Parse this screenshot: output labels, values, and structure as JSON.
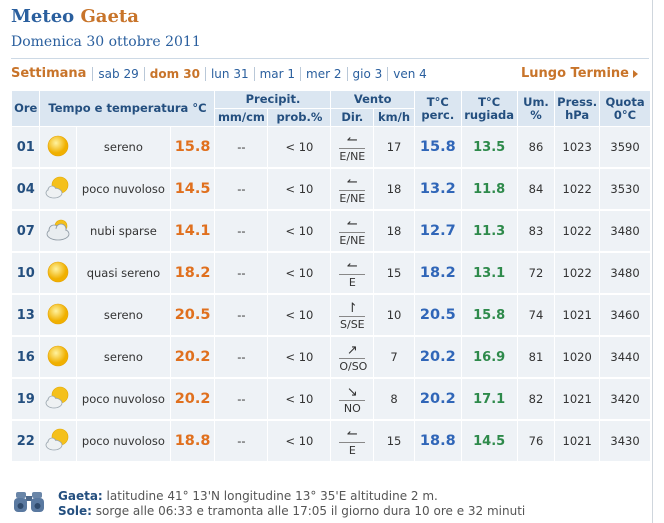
{
  "header": {
    "title_prefix": "Meteo",
    "city": "Gaeta",
    "date": "Domenica 30 ottobre 2011"
  },
  "week": {
    "label": "Settimana",
    "days": [
      {
        "label": "sab 29",
        "active": false
      },
      {
        "label": "dom 30",
        "active": true
      },
      {
        "label": "lun 31",
        "active": false
      },
      {
        "label": "mar 1",
        "active": false
      },
      {
        "label": "mer 2",
        "active": false
      },
      {
        "label": "gio 3",
        "active": false
      },
      {
        "label": "ven 4",
        "active": false
      }
    ],
    "long_term": "Lungo Termine"
  },
  "table": {
    "headers": {
      "ore": "Ore",
      "tempo": "Tempo e temperatura °C",
      "precip": "Precipit.",
      "precip_mm": "mm/cm",
      "precip_prob": "prob.%",
      "vento": "Vento",
      "vento_dir": "Dir.",
      "vento_kmh": "km/h",
      "perc": "T°C perc.",
      "rugiada": "T°C rugiada",
      "umid": "Um. %",
      "press": "Press. hPa",
      "quota": "Quota 0°C"
    },
    "rows": [
      {
        "ore": "01",
        "icon": "sun-icon",
        "desc": "sereno",
        "temp": "15.8",
        "mm": "--",
        "prob": "< 10",
        "arrow": "↼",
        "dir": "E/NE",
        "kmh": "17",
        "perc": "15.8",
        "rug": "13.5",
        "um": "86",
        "press": "1023",
        "quota": "3590"
      },
      {
        "ore": "04",
        "icon": "sun-cloud-icon",
        "desc": "poco nuvoloso",
        "temp": "14.5",
        "mm": "--",
        "prob": "< 10",
        "arrow": "↼",
        "dir": "E/NE",
        "kmh": "18",
        "perc": "13.2",
        "rug": "11.8",
        "um": "84",
        "press": "1022",
        "quota": "3530"
      },
      {
        "ore": "07",
        "icon": "cloud-icon",
        "desc": "nubi sparse",
        "temp": "14.1",
        "mm": "--",
        "prob": "< 10",
        "arrow": "↼",
        "dir": "E/NE",
        "kmh": "18",
        "perc": "12.7",
        "rug": "11.3",
        "um": "83",
        "press": "1022",
        "quota": "3480"
      },
      {
        "ore": "10",
        "icon": "sun-icon",
        "desc": "quasi sereno",
        "temp": "18.2",
        "mm": "--",
        "prob": "< 10",
        "arrow": "↼",
        "dir": "E",
        "kmh": "15",
        "perc": "18.2",
        "rug": "13.1",
        "um": "72",
        "press": "1022",
        "quota": "3480"
      },
      {
        "ore": "13",
        "icon": "sun-icon",
        "desc": "sereno",
        "temp": "20.5",
        "mm": "--",
        "prob": "< 10",
        "arrow": "↾",
        "dir": "S/SE",
        "kmh": "10",
        "perc": "20.5",
        "rug": "15.8",
        "um": "74",
        "press": "1021",
        "quota": "3460"
      },
      {
        "ore": "16",
        "icon": "sun-icon",
        "desc": "sereno",
        "temp": "20.2",
        "mm": "--",
        "prob": "< 10",
        "arrow": "↗",
        "dir": "O/SO",
        "kmh": "7",
        "perc": "20.2",
        "rug": "16.9",
        "um": "81",
        "press": "1020",
        "quota": "3440"
      },
      {
        "ore": "19",
        "icon": "sun-cloud-icon",
        "desc": "poco nuvoloso",
        "temp": "20.2",
        "mm": "--",
        "prob": "< 10",
        "arrow": "↘",
        "dir": "NO",
        "kmh": "8",
        "perc": "20.2",
        "rug": "17.1",
        "um": "82",
        "press": "1021",
        "quota": "3420"
      },
      {
        "ore": "22",
        "icon": "sun-cloud-icon",
        "desc": "poco nuvoloso",
        "temp": "18.8",
        "mm": "--",
        "prob": "< 10",
        "arrow": "↼",
        "dir": "E",
        "kmh": "15",
        "perc": "18.8",
        "rug": "14.5",
        "um": "76",
        "press": "1021",
        "quota": "3430"
      }
    ]
  },
  "footer": {
    "city_label": "Gaeta:",
    "city_info": "latitudine 41° 13'N longitudine 13° 35'E altitudine 2 m.",
    "sun_label": "Sole:",
    "sun_info": "sorge alle 06:33 e tramonta alle 17:05 il giorno dura 10 ore e 32 minuti"
  },
  "colors": {
    "accent_blue": "#2a5f9e",
    "accent_orange": "#c8742a",
    "header_bg": "#dbe6f1",
    "cell_bg": "#eef2f6"
  }
}
